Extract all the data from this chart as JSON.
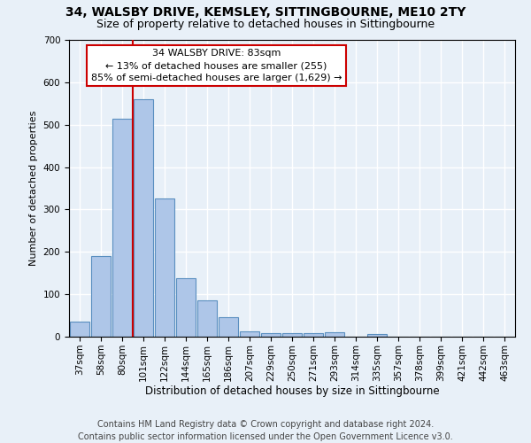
{
  "title": "34, WALSBY DRIVE, KEMSLEY, SITTINGBOURNE, ME10 2TY",
  "subtitle": "Size of property relative to detached houses in Sittingbourne",
  "xlabel": "Distribution of detached houses by size in Sittingbourne",
  "ylabel": "Number of detached properties",
  "footer1": "Contains HM Land Registry data © Crown copyright and database right 2024.",
  "footer2": "Contains public sector information licensed under the Open Government Licence v3.0.",
  "categories": [
    "37sqm",
    "58sqm",
    "80sqm",
    "101sqm",
    "122sqm",
    "144sqm",
    "165sqm",
    "186sqm",
    "207sqm",
    "229sqm",
    "250sqm",
    "271sqm",
    "293sqm",
    "314sqm",
    "335sqm",
    "357sqm",
    "378sqm",
    "399sqm",
    "421sqm",
    "442sqm",
    "463sqm"
  ],
  "values": [
    35,
    190,
    515,
    560,
    325,
    138,
    85,
    47,
    13,
    8,
    8,
    8,
    10,
    0,
    6,
    0,
    0,
    0,
    0,
    0,
    0
  ],
  "bar_color": "#aec6e8",
  "bar_edge_color": "#5a8fc0",
  "vline_x": 2.5,
  "vline_color": "#cc0000",
  "annotation_text": "34 WALSBY DRIVE: 83sqm\n← 13% of detached houses are smaller (255)\n85% of semi-detached houses are larger (1,629) →",
  "annotation_box_color": "#ffffff",
  "annotation_box_edge": "#cc0000",
  "ylim": [
    0,
    700
  ],
  "yticks": [
    0,
    100,
    200,
    300,
    400,
    500,
    600,
    700
  ],
  "bg_color": "#e8f0f8",
  "plot_bg_color": "#e8f0f8",
  "grid_color": "#ffffff",
  "title_fontsize": 10,
  "subtitle_fontsize": 9,
  "ylabel_fontsize": 8,
  "xlabel_fontsize": 8.5,
  "tick_fontsize": 7.5,
  "annotation_fontsize": 8,
  "footer_fontsize": 7
}
